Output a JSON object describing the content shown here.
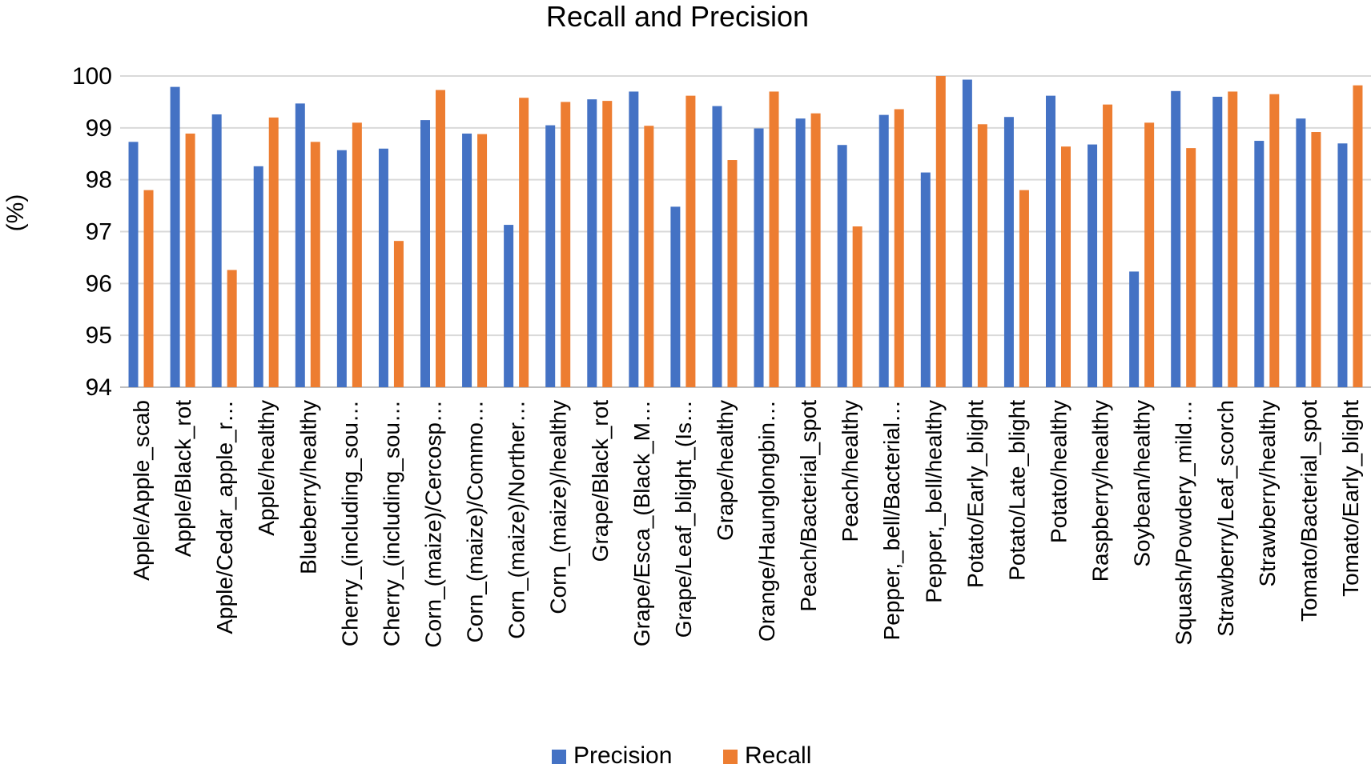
{
  "chart_data": {
    "type": "bar",
    "title": "Recall and Precision",
    "xlabel": "",
    "ylabel": "(%)",
    "ylim": [
      94,
      100
    ],
    "yticks": [
      "94",
      "95",
      "96",
      "97",
      "98",
      "99",
      "100"
    ],
    "grid": true,
    "legend_position": "bottom-center",
    "categories": [
      "Apple/Apple_scab",
      "Apple/Black_rot",
      "Apple/Cedar_apple_r…",
      "Apple/healthy",
      "Blueberry/healthy",
      "Cherry_(including_sou…",
      "Cherry_(including_sou…",
      "Corn_(maize)/Cercosp…",
      "Corn_(maize)/Commo…",
      "Corn_(maize)/Norther…",
      "Corn_(maize)/healthy",
      "Grape/Black_rot",
      "Grape/Esca_(Black_M…",
      "Grape/Leaf_blight_(Is…",
      "Grape/healthy",
      "Orange/Haunglongbin…",
      "Peach/Bacterial_spot",
      "Peach/healthy",
      "Pepper,_bell/Bacterial…",
      "Pepper,_bell/healthy",
      "Potato/Early_blight",
      "Potato/Late_blight",
      "Potato/healthy",
      "Raspberry/healthy",
      "Soybean/healthy",
      "Squash/Powdery_mild…",
      "Strawberry/Leaf_scorch",
      "Strawberry/healthy",
      "Tomato/Bacterial_spot",
      "Tomato/Early_blight"
    ],
    "series": [
      {
        "name": "Precision",
        "color": "#4472C4",
        "values": [
          98.73,
          99.79,
          99.26,
          98.26,
          99.47,
          98.57,
          98.6,
          99.15,
          98.89,
          97.13,
          99.05,
          99.55,
          99.7,
          97.48,
          99.42,
          98.99,
          99.18,
          98.67,
          99.25,
          98.14,
          99.93,
          99.21,
          99.62,
          98.68,
          96.23,
          99.71,
          99.6,
          98.75,
          99.18,
          98.7
        ]
      },
      {
        "name": "Recall",
        "color": "#ED7D31",
        "values": [
          97.8,
          98.89,
          96.26,
          99.2,
          98.73,
          99.1,
          96.82,
          99.73,
          98.88,
          99.58,
          99.5,
          99.52,
          99.04,
          99.62,
          98.38,
          99.7,
          99.28,
          97.1,
          99.36,
          100.0,
          99.07,
          97.8,
          98.64,
          99.45,
          99.1,
          98.61,
          99.7,
          99.65,
          98.92,
          99.82
        ]
      }
    ]
  }
}
